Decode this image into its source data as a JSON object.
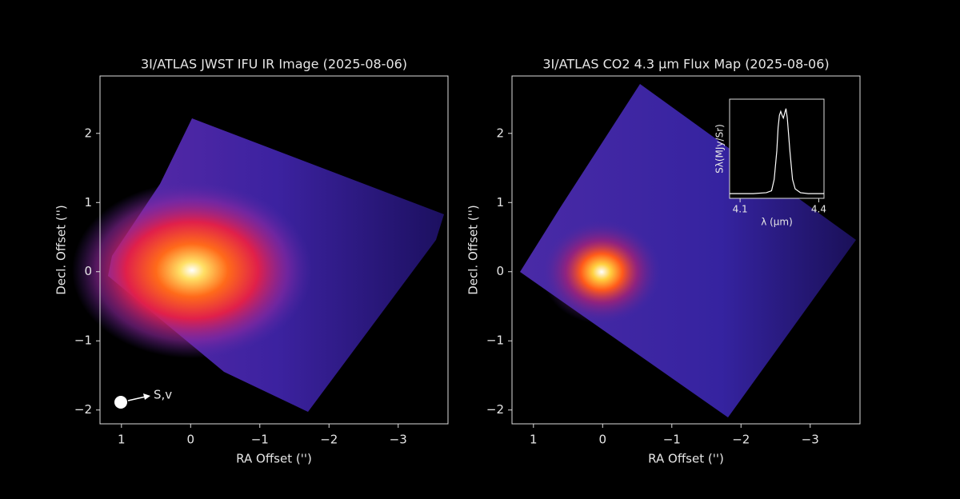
{
  "chart_data": [
    {
      "type": "image",
      "title": "3I/ATLAS JWST IFU IR Image (2025-08-06)",
      "xlabel": "RA Offset ('')",
      "ylabel": "Decl. Offset ('')",
      "xlim": [
        1.31,
        -3.72
      ],
      "ylim": [
        -2.2,
        2.83
      ],
      "xticks": [
        1,
        0,
        {
          "value": -1,
          "label": "−1"
        },
        {
          "value": -2,
          "label": "−2"
        },
        {
          "value": -3,
          "label": "−3"
        }
      ],
      "yticks": [
        {
          "value": -2,
          "label": "−2"
        },
        {
          "value": -1,
          "label": "−1"
        },
        0,
        1,
        2
      ],
      "annotation": "S,v"
    },
    {
      "type": "image",
      "title": "3I/ATLAS CO2 4.3 μm Flux Map (2025-08-06)",
      "xlabel": "RA Offset ('')",
      "ylabel": "Decl. Offset ('')",
      "xlim": [
        1.31,
        -3.72
      ],
      "ylim": [
        -2.2,
        2.83
      ],
      "xticks": [
        1,
        0,
        {
          "value": -1,
          "label": "−1"
        },
        {
          "value": -2,
          "label": "−2"
        },
        {
          "value": -3,
          "label": "−3"
        }
      ],
      "yticks": [
        {
          "value": -2,
          "label": "−2"
        },
        {
          "value": -1,
          "label": "−1"
        },
        0,
        1,
        2
      ],
      "inset": {
        "type": "line",
        "xlabel": "λ (μm)",
        "ylabel": "Sλ(MJy/Sr)",
        "xlim": [
          4.06,
          4.42
        ],
        "ylim": [
          0,
          1.05
        ],
        "xticks": [
          4.1,
          4.4
        ],
        "color": "#ffffff",
        "x": [
          4.06,
          4.1,
          4.15,
          4.2,
          4.22,
          4.23,
          4.24,
          4.245,
          4.25,
          4.255,
          4.26,
          4.265,
          4.27,
          4.275,
          4.28,
          4.29,
          4.3,
          4.31,
          4.33,
          4.36,
          4.4,
          4.42
        ],
        "values": [
          0.05,
          0.05,
          0.05,
          0.06,
          0.08,
          0.2,
          0.5,
          0.75,
          0.88,
          0.92,
          0.88,
          0.85,
          0.9,
          0.95,
          0.85,
          0.5,
          0.2,
          0.1,
          0.06,
          0.05,
          0.05,
          0.05
        ]
      }
    }
  ]
}
